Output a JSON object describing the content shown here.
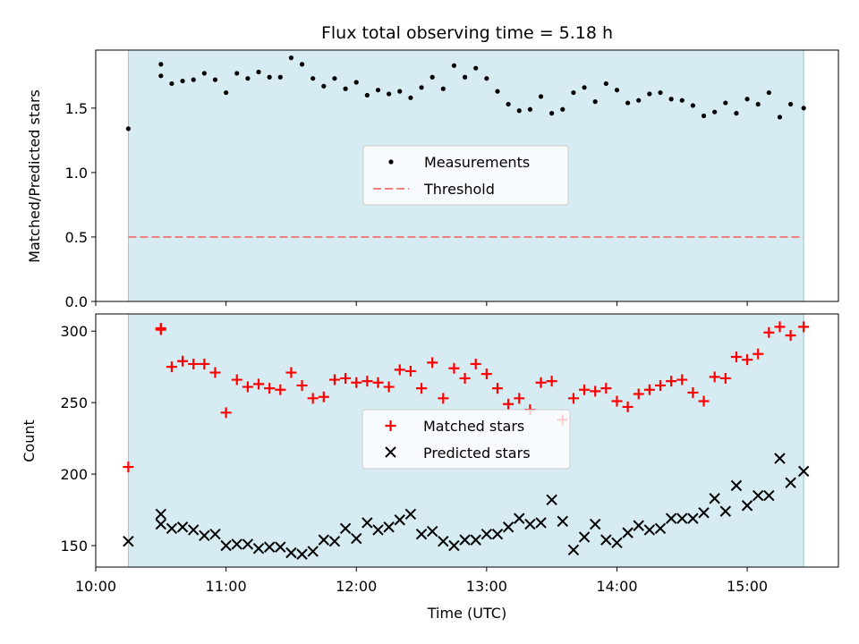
{
  "title": "Flux total observing time = 5.18 h",
  "colors": {
    "shade": "#add8e6",
    "measurement": "#000000",
    "threshold": "#f08080",
    "matched": "#ff0000",
    "predicted": "#000000"
  },
  "chart_data": [
    {
      "type": "scatter",
      "panel": "top",
      "ylabel": "Matched/Predicted stars",
      "xlabel": "",
      "ylim": [
        0,
        1.95
      ],
      "yticks": [
        0.0,
        0.5,
        1.0,
        1.5
      ],
      "ytick_labels": [
        "0.0",
        "0.5",
        "1.0",
        "1.5"
      ],
      "xlim": [
        "10:00",
        "15:42"
      ],
      "shaded_span": [
        "10:15",
        "15:26"
      ],
      "legend": {
        "position": "center",
        "labels": [
          "Measurements",
          "Threshold"
        ]
      },
      "threshold": {
        "name": "Threshold",
        "value": 0.5,
        "x": [
          "10:15",
          "15:26"
        ]
      },
      "series": [
        {
          "name": "Measurements",
          "x": [
            "10:15",
            "10:30",
            "10:30",
            "10:35",
            "10:40",
            "10:45",
            "10:50",
            "10:55",
            "11:00",
            "11:05",
            "11:10",
            "11:15",
            "11:20",
            "11:25",
            "11:30",
            "11:35",
            "11:40",
            "11:45",
            "11:50",
            "11:55",
            "12:00",
            "12:05",
            "12:10",
            "12:15",
            "12:20",
            "12:25",
            "12:30",
            "12:35",
            "12:40",
            "12:45",
            "12:50",
            "12:55",
            "13:00",
            "13:05",
            "13:10",
            "13:15",
            "13:20",
            "13:25",
            "13:30",
            "13:35",
            "13:40",
            "13:45",
            "13:50",
            "13:55",
            "14:00",
            "14:05",
            "14:10",
            "14:15",
            "14:20",
            "14:25",
            "14:30",
            "14:35",
            "14:40",
            "14:45",
            "14:50",
            "14:55",
            "15:00",
            "15:05",
            "15:10",
            "15:15",
            "15:20",
            "15:26"
          ],
          "y": [
            1.34,
            1.75,
            1.84,
            1.69,
            1.71,
            1.72,
            1.77,
            1.72,
            1.62,
            1.77,
            1.73,
            1.78,
            1.74,
            1.74,
            1.89,
            1.84,
            1.73,
            1.67,
            1.73,
            1.65,
            1.7,
            1.6,
            1.64,
            1.61,
            1.63,
            1.58,
            1.66,
            1.74,
            1.65,
            1.83,
            1.74,
            1.81,
            1.73,
            1.63,
            1.53,
            1.48,
            1.49,
            1.59,
            1.46,
            1.49,
            1.62,
            1.66,
            1.55,
            1.69,
            1.64,
            1.54,
            1.56,
            1.61,
            1.62,
            1.57,
            1.56,
            1.52,
            1.44,
            1.47,
            1.54,
            1.46,
            1.57,
            1.53,
            1.62,
            1.43,
            1.53,
            1.5
          ]
        }
      ]
    },
    {
      "type": "scatter",
      "panel": "bottom",
      "ylabel": "Count",
      "xlabel": "Time (UTC)",
      "ylim": [
        135,
        312
      ],
      "yticks": [
        150,
        200,
        250,
        300
      ],
      "ytick_labels": [
        "150",
        "200",
        "250",
        "300"
      ],
      "xlim": [
        "10:00",
        "15:42"
      ],
      "xtick_labels": [
        "10:00",
        "11:00",
        "12:00",
        "13:00",
        "14:00",
        "15:00"
      ],
      "shaded_span": [
        "10:15",
        "15:26"
      ],
      "legend": {
        "position": "center",
        "labels": [
          "Matched stars",
          "Predicted stars"
        ]
      },
      "series": [
        {
          "name": "Matched stars",
          "x": [
            "10:15",
            "10:30",
            "10:30",
            "10:35",
            "10:40",
            "10:45",
            "10:50",
            "10:55",
            "11:00",
            "11:05",
            "11:10",
            "11:15",
            "11:20",
            "11:25",
            "11:30",
            "11:35",
            "11:40",
            "11:45",
            "11:50",
            "11:55",
            "12:00",
            "12:05",
            "12:10",
            "12:15",
            "12:20",
            "12:25",
            "12:30",
            "12:35",
            "12:40",
            "12:45",
            "12:50",
            "12:55",
            "13:00",
            "13:05",
            "13:10",
            "13:15",
            "13:20",
            "13:25",
            "13:30",
            "13:35",
            "13:40",
            "13:45",
            "13:50",
            "13:55",
            "14:00",
            "14:05",
            "14:10",
            "14:15",
            "14:20",
            "14:25",
            "14:30",
            "14:35",
            "14:40",
            "14:45",
            "14:50",
            "14:55",
            "15:00",
            "15:05",
            "15:10",
            "15:15",
            "15:20",
            "15:26"
          ],
          "y": [
            205,
            302,
            301,
            275,
            279,
            277,
            277,
            271,
            243,
            266,
            261,
            263,
            260,
            259,
            271,
            262,
            253,
            254,
            266,
            267,
            264,
            265,
            264,
            261,
            273,
            272,
            260,
            278,
            253,
            274,
            267,
            277,
            270,
            260,
            249,
            253,
            245,
            264,
            265,
            238,
            253,
            259,
            258,
            260,
            251,
            247,
            256,
            259,
            262,
            265,
            266,
            257,
            251,
            268,
            267,
            282,
            280,
            284,
            299,
            303,
            297,
            303
          ]
        },
        {
          "name": "Predicted stars",
          "x": [
            "10:15",
            "10:30",
            "10:30",
            "10:35",
            "10:40",
            "10:45",
            "10:50",
            "10:55",
            "11:00",
            "11:05",
            "11:10",
            "11:15",
            "11:20",
            "11:25",
            "11:30",
            "11:35",
            "11:40",
            "11:45",
            "11:50",
            "11:55",
            "12:00",
            "12:05",
            "12:10",
            "12:15",
            "12:20",
            "12:25",
            "12:30",
            "12:35",
            "12:40",
            "12:45",
            "12:50",
            "12:55",
            "13:00",
            "13:05",
            "13:10",
            "13:15",
            "13:20",
            "13:25",
            "13:30",
            "13:35",
            "13:40",
            "13:45",
            "13:50",
            "13:55",
            "14:00",
            "14:05",
            "14:10",
            "14:15",
            "14:20",
            "14:25",
            "14:30",
            "14:35",
            "14:40",
            "14:45",
            "14:50",
            "14:55",
            "15:00",
            "15:05",
            "15:10",
            "15:15",
            "15:20",
            "15:26"
          ],
          "y": [
            153,
            172,
            165,
            162,
            163,
            161,
            157,
            158,
            150,
            151,
            151,
            148,
            149,
            149,
            145,
            144,
            146,
            154,
            153,
            162,
            155,
            166,
            161,
            163,
            168,
            172,
            158,
            160,
            153,
            150,
            154,
            154,
            158,
            158,
            163,
            169,
            165,
            166,
            182,
            167,
            147,
            156,
            165,
            154,
            152,
            159,
            164,
            161,
            162,
            169,
            169,
            169,
            173,
            183,
            174,
            192,
            178,
            185,
            185,
            211,
            194,
            202
          ]
        }
      ]
    }
  ]
}
